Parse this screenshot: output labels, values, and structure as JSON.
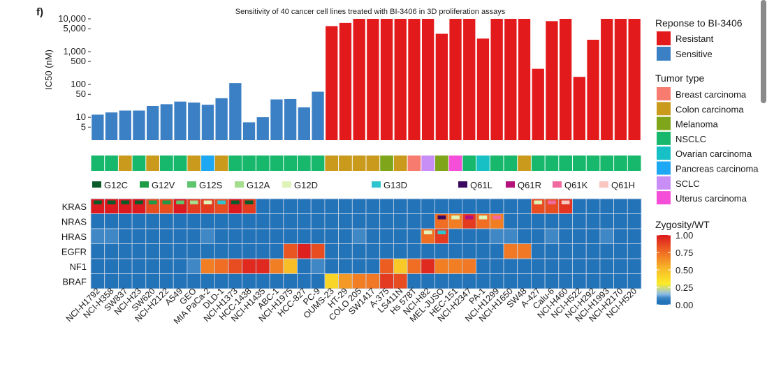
{
  "panel_label": "f)",
  "chart_data": {
    "type": "bar",
    "title": "Sensitivity of 40 cancer cell lines treated with BI-3406 in 3D proliferation assays",
    "ylabel": "IC50 (nM)",
    "yscale": "log",
    "ylim": [
      2,
      10000
    ],
    "yticks": [
      {
        "v": 10000,
        "label": "10,000"
      },
      {
        "v": 5000,
        "label": "5,000"
      },
      {
        "v": 1000,
        "label": "1,000"
      },
      {
        "v": 500,
        "label": "500"
      },
      {
        "v": 100,
        "label": "100"
      },
      {
        "v": 50,
        "label": "50"
      },
      {
        "v": 10,
        "label": "10"
      },
      {
        "v": 5,
        "label": "5"
      }
    ],
    "categories": [
      "NCI-H1792",
      "NCI-H358",
      "SW837",
      "NCI-H23",
      "SW620",
      "NCI-H2122",
      "A549",
      "GEO",
      "MIA PaCa-2",
      "DLD-1",
      "NCI-H1373",
      "HCC-1438",
      "NCI-H1435",
      "ABC-1",
      "NCI-H1975",
      "HCC-827",
      "PC-9",
      "OUMS-23",
      "HT-29",
      "COLO 205",
      "SW1417",
      "A-375",
      "LS411N",
      "Hs 578T",
      "NCI-H82",
      "MEL-JUSO",
      "HEC-151",
      "NCI-H2347",
      "PA-1",
      "NCI-H1299",
      "NCI-H1650",
      "SW48",
      "A-427",
      "Calu-6",
      "NCI-H460",
      "NCI-H522",
      "NCI-H292",
      "NCI-H1993",
      "NCI-H2170",
      "NCI-H520"
    ],
    "values": [
      12,
      14,
      16,
      16,
      22,
      25,
      30,
      28,
      24,
      38,
      110,
      7,
      10,
      35,
      36,
      20,
      60,
      6000,
      7500,
      10000,
      10000,
      10000,
      10000,
      10000,
      10000,
      3500,
      10000,
      10000,
      2500,
      10000,
      10000,
      10000,
      300,
      8500,
      10000,
      170,
      2300,
      10000,
      10000,
      10000
    ],
    "response": [
      "S",
      "S",
      "S",
      "S",
      "S",
      "S",
      "S",
      "S",
      "S",
      "S",
      "S",
      "S",
      "S",
      "S",
      "S",
      "S",
      "S",
      "R",
      "R",
      "R",
      "R",
      "R",
      "R",
      "R",
      "R",
      "R",
      "R",
      "R",
      "R",
      "R",
      "R",
      "R",
      "R",
      "R",
      "R",
      "R",
      "R",
      "R",
      "R",
      "R"
    ],
    "response_legend": {
      "title": "Reponse to BI-3406",
      "items": [
        {
          "key": "R",
          "label": "Resistant",
          "color": "#e31a1c"
        },
        {
          "key": "S",
          "label": "Sensitive",
          "color": "#3b7fc4"
        }
      ]
    },
    "tumor_type": [
      "nsclc",
      "nsclc",
      "colon",
      "nsclc",
      "colon",
      "nsclc",
      "nsclc",
      "colon",
      "pancreas",
      "colon",
      "nsclc",
      "nsclc",
      "nsclc",
      "nsclc",
      "nsclc",
      "nsclc",
      "nsclc",
      "colon",
      "colon",
      "colon",
      "colon",
      "melanoma",
      "colon",
      "breast",
      "sclc",
      "melanoma",
      "uterus",
      "nsclc",
      "ovarian",
      "nsclc",
      "nsclc",
      "colon",
      "nsclc",
      "nsclc",
      "nsclc",
      "nsclc",
      "nsclc",
      "nsclc",
      "nsclc",
      "nsclc"
    ],
    "tumor_legend": {
      "title": "Tumor type",
      "items": [
        {
          "key": "breast",
          "label": "Breast carcinoma",
          "color": "#f77b6e"
        },
        {
          "key": "colon",
          "label": "Colon carcinoma",
          "color": "#c99a1b"
        },
        {
          "key": "melanoma",
          "label": "Melanoma",
          "color": "#7fa61a"
        },
        {
          "key": "nsclc",
          "label": "NSCLC",
          "color": "#17b86b"
        },
        {
          "key": "ovarian",
          "label": "Ovarian carcinoma",
          "color": "#16c0c4"
        },
        {
          "key": "pancreas",
          "label": "Pancreas carcinoma",
          "color": "#1ea7f2"
        },
        {
          "key": "sclc",
          "label": "SCLC",
          "color": "#c98ef5"
        },
        {
          "key": "uterus",
          "label": "Uterus carcinoma",
          "color": "#f54fd9"
        }
      ]
    },
    "mutation_legend": [
      {
        "key": "G12C",
        "label": "G12C",
        "color": "#0a5a2a"
      },
      {
        "key": "G12V",
        "label": "G12V",
        "color": "#1f9a47"
      },
      {
        "key": "G12S",
        "label": "G12S",
        "color": "#5fc46e"
      },
      {
        "key": "G12A",
        "label": "G12A",
        "color": "#a5dd8f"
      },
      {
        "key": "G12D",
        "label": "G12D",
        "color": "#dff2b8"
      },
      {
        "key": "G13D",
        "label": "G13D",
        "color": "#2ec4cf"
      },
      {
        "key": "Q61L",
        "label": "Q61L",
        "color": "#3b0a5e"
      },
      {
        "key": "Q61R",
        "label": "Q61R",
        "color": "#b3127a"
      },
      {
        "key": "Q61K",
        "label": "Q61K",
        "color": "#f06aa0"
      },
      {
        "key": "Q61H",
        "label": "Q61H",
        "color": "#f8c5c0"
      }
    ],
    "genes": [
      "KRAS",
      "NRAS",
      "HRAS",
      "EGFR",
      "NF1",
      "BRAF"
    ],
    "zygosity": [
      [
        1,
        1,
        1,
        1,
        0.85,
        0.85,
        1,
        0.9,
        0.9,
        0.85,
        1,
        0.9,
        0,
        0,
        0,
        0,
        0,
        0,
        0,
        0,
        0,
        0,
        0,
        0,
        0,
        0,
        0,
        0,
        0,
        0,
        0,
        0,
        0.85,
        0.85,
        0.92,
        0,
        0,
        0,
        0,
        0
      ],
      [
        0,
        0,
        0,
        0,
        0,
        0,
        0,
        0,
        0,
        0,
        0,
        0,
        0,
        0,
        0,
        0,
        0,
        0,
        0,
        0,
        0,
        0,
        0,
        0,
        0,
        0.75,
        0.7,
        0.9,
        0.75,
        0.7,
        0,
        0,
        0,
        0,
        0,
        0,
        0,
        0,
        0,
        0
      ],
      [
        0.1,
        0.1,
        0,
        0,
        0,
        0,
        0,
        0,
        0.1,
        0,
        0,
        0,
        0,
        0,
        0,
        0,
        0,
        0,
        0,
        0.1,
        0,
        0,
        0,
        0,
        0.75,
        0.9,
        0,
        0,
        0,
        0.1,
        0.1,
        0,
        0,
        0.1,
        0,
        0,
        0,
        0.1,
        0,
        0
      ],
      [
        0,
        0,
        0,
        0,
        0,
        0,
        0,
        0,
        0,
        0,
        0,
        0,
        0,
        0,
        0.82,
        0.98,
        0.85,
        0,
        0,
        0,
        0,
        0,
        0,
        0,
        0,
        0,
        0,
        0,
        0,
        0,
        0.72,
        0.72,
        0,
        0,
        0,
        0,
        0,
        0,
        0,
        0
      ],
      [
        0,
        0,
        0,
        0,
        0,
        0,
        0,
        0.1,
        0.7,
        0.75,
        0.85,
        0.95,
        0.95,
        0.7,
        0.5,
        0,
        0.1,
        0,
        0,
        0,
        0,
        0.8,
        0.45,
        0.75,
        0.95,
        0.7,
        0.7,
        0.72,
        0,
        0,
        0,
        0,
        0,
        0,
        0,
        0,
        0,
        0,
        0,
        0
      ],
      [
        0,
        0,
        0,
        0,
        0,
        0,
        0,
        0,
        0,
        0,
        0,
        0,
        0,
        0,
        0,
        0,
        0,
        0.4,
        0.62,
        0.7,
        0.72,
        0.9,
        0.85,
        0,
        0,
        0,
        0,
        0,
        0,
        0,
        0,
        0,
        0,
        0,
        0,
        0,
        0,
        0,
        0,
        0
      ]
    ],
    "kras_mutations": [
      "G12C",
      "G12C",
      "G12C",
      "G12C",
      "G12V",
      "G12V",
      "G12S",
      "G12A",
      "G12D",
      "G13D",
      "G12C",
      "G12C",
      "",
      "",
      "",
      "",
      "",
      "",
      "",
      "",
      "",
      "",
      "",
      "",
      "",
      "",
      "",
      "",
      "",
      "",
      "",
      "",
      "G12D",
      "Q61K",
      "Q61H",
      "",
      "",
      "",
      "",
      ""
    ],
    "nras_mutations": [
      "",
      "",
      "",
      "",
      "",
      "",
      "",
      "",
      "",
      "",
      "",
      "",
      "",
      "",
      "",
      "",
      "",
      "",
      "",
      "",
      "",
      "",
      "",
      "",
      "",
      "Q61L",
      "G12D",
      "Q61R",
      "G12D",
      "Q61K",
      "",
      "",
      "",
      "",
      "",
      "",
      "",
      "",
      "",
      ""
    ],
    "hras_mutations": [
      "",
      "",
      "",
      "",
      "",
      "",
      "",
      "",
      "",
      "",
      "",
      "",
      "",
      "",
      "",
      "",
      "",
      "",
      "",
      "",
      "",
      "",
      "",
      "",
      "G12D",
      "G13D",
      "",
      "",
      "",
      "",
      "",
      "",
      "",
      "",
      "",
      "",
      "",
      "",
      "",
      ""
    ],
    "zygosity_legend": {
      "title": "Zygosity/WT",
      "ticks": [
        {
          "v": 1.0,
          "label": "1.00"
        },
        {
          "v": 0.75,
          "label": "0.75"
        },
        {
          "v": 0.5,
          "label": "0.50"
        },
        {
          "v": 0.25,
          "label": "0.25"
        },
        {
          "v": 0.0,
          "label": "0.00"
        }
      ]
    }
  }
}
